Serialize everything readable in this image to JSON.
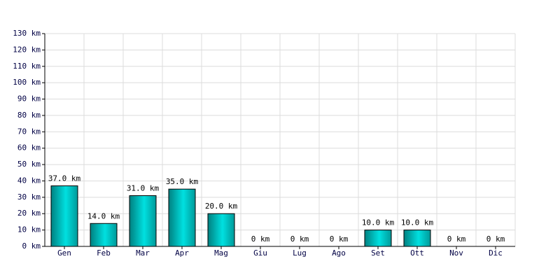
{
  "chart_data": {
    "type": "bar",
    "categories": [
      "Gen",
      "Feb",
      "Mar",
      "Apr",
      "Mag",
      "Giu",
      "Lug",
      "Ago",
      "Set",
      "Ott",
      "Nov",
      "Dic"
    ],
    "values": [
      37,
      14,
      31,
      35,
      20,
      0,
      0,
      0,
      10,
      10,
      0,
      0
    ],
    "value_labels": [
      "37.0 km",
      "14.0 km",
      "31.0 km",
      "35.0 km",
      "20.0 km",
      "0 km",
      "0 km",
      "0 km",
      "10.0 km",
      "10.0 km",
      "0 km",
      "0 km"
    ],
    "color": "#00e0e0",
    "ylim": [
      0,
      130
    ],
    "yticks": [
      {
        "value": 0,
        "label": "0 km"
      },
      {
        "value": 10,
        "label": "10 km"
      },
      {
        "value": 20,
        "label": "20 km"
      },
      {
        "value": 30,
        "label": "30 km"
      },
      {
        "value": 40,
        "label": "40 km"
      },
      {
        "value": 50,
        "label": "50 km"
      },
      {
        "value": 60,
        "label": "60 km"
      },
      {
        "value": 70,
        "label": "70 km"
      },
      {
        "value": 80,
        "label": "80 km"
      },
      {
        "value": 90,
        "label": "90 km"
      },
      {
        "value": 100,
        "label": "100 km"
      },
      {
        "value": 110,
        "label": "110 km"
      },
      {
        "value": 120,
        "label": "120 km"
      },
      {
        "value": 130,
        "label": "130 km"
      }
    ],
    "grid": true
  }
}
